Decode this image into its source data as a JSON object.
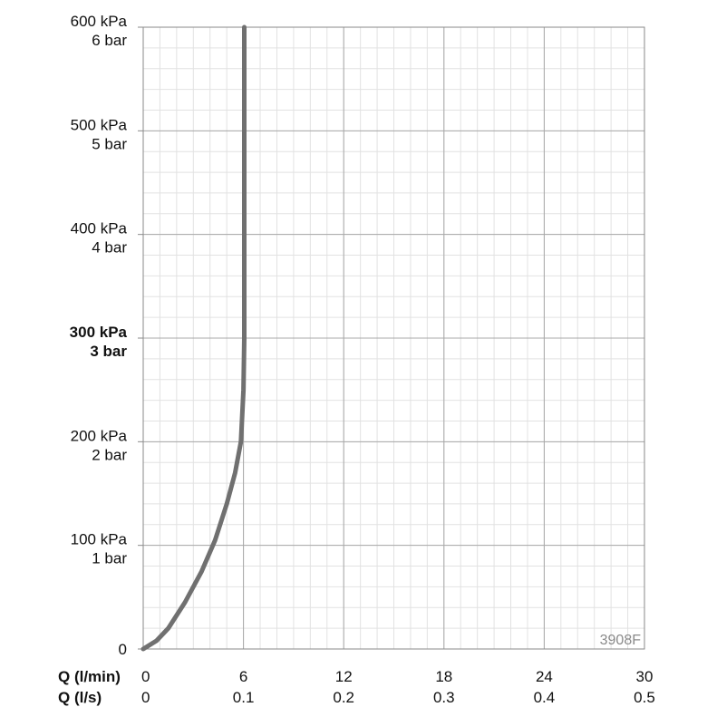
{
  "chart_data": {
    "type": "line",
    "code_label": "3908F",
    "x_axis": {
      "primary_title": "Q (l/min)",
      "secondary_title": "Q (l/s)",
      "range": [
        0,
        30
      ],
      "ticks": [
        0,
        6,
        12,
        18,
        24,
        30
      ],
      "tick_labels": [
        "0",
        "6",
        "12",
        "18",
        "24",
        "30"
      ],
      "secondary_tick_labels": [
        "0",
        "0.1",
        "0.2",
        "0.3",
        "0.4",
        "0.5"
      ]
    },
    "y_axis": {
      "unit": "kPa",
      "range": [
        0,
        600
      ],
      "ticks": [
        0,
        100,
        200,
        300,
        400,
        500,
        600
      ],
      "tick_labels": [
        "0",
        "100 kPa",
        "200 kPa",
        "300 kPa",
        "400 kPa",
        "500 kPa",
        "600 kPa"
      ],
      "secondary_tick_labels": [
        "",
        "1 bar",
        "2 bar",
        "3 bar",
        "4 bar",
        "5 bar",
        "6 bar"
      ],
      "emphasized_tick": 300
    },
    "grid": true,
    "series": [
      {
        "color": "#707070",
        "x": [
          0,
          0.8,
          1.5,
          2.5,
          3.5,
          4.3,
          5.0,
          5.5,
          5.85,
          6.0,
          6.05,
          6.05,
          6.05
        ],
        "y": [
          0,
          8,
          20,
          45,
          75,
          105,
          140,
          170,
          200,
          250,
          300,
          450,
          600
        ]
      }
    ]
  }
}
